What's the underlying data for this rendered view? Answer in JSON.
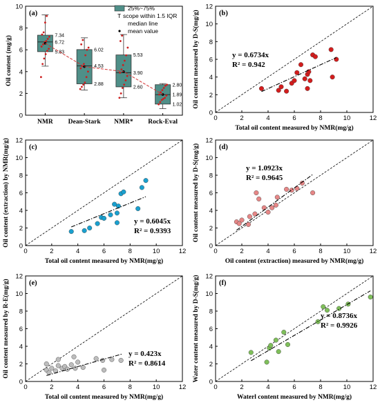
{
  "colors": {
    "box_fill": "#4f8f88",
    "box_point": "#cc1f1f",
    "mean_line": "#d33333",
    "scatter_b": "#d31d1d",
    "scatter_c": "#1aa0cf",
    "scatter_d": "#e68787",
    "scatter_e": "#bdbdbd",
    "scatter_f": "#7fbf5a"
  },
  "chart_data": [
    {
      "id": "a",
      "type": "box",
      "panel_label": "(a)",
      "ylabel": "Oil content (mg/g)",
      "ylim": [
        0,
        10
      ],
      "yticks": [
        0,
        2,
        4,
        6,
        8,
        10
      ],
      "categories": [
        "NMR",
        "Dean-Stark",
        "NMR*",
        "Rock-Eval"
      ],
      "legend": {
        "box": "25%~75%",
        "whisker": "scope within 1.5 IQR",
        "median": "median line",
        "mean": "mean value"
      },
      "boxes": [
        {
          "category": "NMR",
          "q1": 5.83,
          "median": 6.72,
          "q3": 7.34,
          "whisker_low": 4.5,
          "whisker_high": 9.2,
          "mean": 6.6,
          "labels": [
            "7.34",
            "6.72",
            "5.83"
          ],
          "points": [
            3.5,
            4.7,
            5.2,
            5.6,
            5.9,
            6.1,
            6.3,
            6.5,
            6.7,
            6.8,
            7.0,
            7.2,
            7.4,
            7.6,
            8.5,
            9.1
          ]
        },
        {
          "category": "Dean-Stark",
          "q1": 2.88,
          "median": 4.53,
          "q3": 6.02,
          "whisker_low": 2.3,
          "whisker_high": 7.1,
          "mean": 4.45,
          "labels": [
            "6.02",
            "4.53",
            "2.88"
          ],
          "points": [
            2.4,
            2.6,
            2.8,
            3.0,
            3.5,
            4.0,
            4.3,
            4.5,
            4.7,
            5.5,
            6.0,
            6.2,
            6.5,
            6.9
          ]
        },
        {
          "category": "NMR*",
          "q1": 2.6,
          "median": 3.9,
          "q3": 5.53,
          "whisker_low": 1.6,
          "whisker_high": 7.4,
          "mean": 4.0,
          "labels": [
            "5.53",
            "3.90",
            "2.60"
          ],
          "points": [
            1.6,
            2.0,
            2.5,
            2.8,
            3.2,
            3.6,
            3.9,
            4.2,
            4.6,
            5.0,
            5.5,
            6.2,
            6.8,
            7.3
          ]
        },
        {
          "category": "Rock-Eval",
          "q1": 1.02,
          "median": 1.89,
          "q3": 2.8,
          "whisker_low": 0.6,
          "whisker_high": 2.9,
          "mean": 1.9,
          "labels": [
            "2.80",
            "1.89",
            "1.02"
          ],
          "points": [
            1.0,
            1.2,
            1.4,
            1.5,
            1.6,
            1.8,
            1.9,
            2.1,
            2.3,
            2.5,
            2.7,
            2.8
          ]
        }
      ]
    },
    {
      "id": "b",
      "type": "scatter",
      "panel_label": "(b)",
      "xlabel": "Total oil content measured by NMR(mg/g)",
      "ylabel": "Oil content measured by D-S(mg/g)",
      "xlim": [
        0,
        12
      ],
      "ylim": [
        0,
        12
      ],
      "xticks": [
        0,
        2,
        4,
        6,
        8,
        10,
        12
      ],
      "yticks": [
        0,
        2,
        4,
        6,
        8,
        10,
        12
      ],
      "equation": "y = 0.6734x",
      "r2": "R² = 0.942",
      "slope": 0.6734,
      "fit_x": [
        3.5,
        9.2
      ],
      "x": [
        3.5,
        4.8,
        5.0,
        5.4,
        5.8,
        6.0,
        6.2,
        6.5,
        6.8,
        7.0,
        7.0,
        7.1,
        7.2,
        7.4,
        7.6,
        8.8,
        8.9,
        9.2
      ],
      "y": [
        2.7,
        2.5,
        2.9,
        2.4,
        3.3,
        3.6,
        4.5,
        5.4,
        3.8,
        4.3,
        2.7,
        4.6,
        3.6,
        6.5,
        6.3,
        7.1,
        4.0,
        6.0
      ]
    },
    {
      "id": "c",
      "type": "scatter",
      "panel_label": "(c)",
      "xlabel": "Total oil content measured by NMR(mg/g)",
      "ylabel": "Oil content (extraction) by NMR(mg/g)",
      "xlim": [
        0,
        12
      ],
      "ylim": [
        0,
        12
      ],
      "xticks": [
        0,
        2,
        4,
        6,
        8,
        10,
        12
      ],
      "yticks": [
        0,
        2,
        4,
        6,
        8,
        10,
        12
      ],
      "equation": "y = 0.6045x",
      "r2": "R² = 0.9393",
      "slope": 0.6045,
      "fit_x": [
        3.5,
        9.2
      ],
      "x": [
        3.5,
        4.5,
        4.9,
        5.5,
        5.8,
        6.0,
        6.5,
        6.8,
        7.0,
        7.0,
        7.1,
        7.3,
        7.5,
        8.6,
        8.9,
        9.2
      ],
      "y": [
        1.6,
        1.7,
        2.0,
        2.5,
        3.2,
        3.1,
        3.5,
        4.7,
        2.6,
        3.7,
        4.5,
        5.9,
        6.1,
        4.2,
        6.6,
        7.4
      ]
    },
    {
      "id": "d",
      "type": "scatter",
      "panel_label": "(d)",
      "xlabel": "Oil content (extraction) measured by NMR(mg/g)",
      "ylabel": "Oil content measured by D-S(mg/g)",
      "xlim": [
        0,
        12
      ],
      "ylim": [
        0,
        12
      ],
      "xticks": [
        0,
        2,
        4,
        6,
        8,
        10,
        12
      ],
      "yticks": [
        0,
        2,
        4,
        6,
        8,
        10,
        12
      ],
      "equation": "y = 1.0923x",
      "r2": "R² = 0.9645",
      "slope": 1.0923,
      "fit_x": [
        1.6,
        7.4
      ],
      "x": [
        1.6,
        1.8,
        2.0,
        2.5,
        2.6,
        3.0,
        3.1,
        3.3,
        3.7,
        4.0,
        4.3,
        4.6,
        4.7,
        5.4,
        5.8,
        6.2,
        6.6,
        7.4
      ],
      "y": [
        2.7,
        2.5,
        2.9,
        2.4,
        3.3,
        3.6,
        6.0,
        5.3,
        4.3,
        3.8,
        4.3,
        4.6,
        5.5,
        6.4,
        6.3,
        6.5,
        7.1,
        6.0
      ]
    },
    {
      "id": "e",
      "type": "scatter",
      "panel_label": "(e)",
      "xlabel": "Total oil content measured by NMR(mg/g)",
      "ylabel": "Oil content measured by R-E(mg/g)",
      "xlim": [
        0,
        12
      ],
      "ylim": [
        0,
        12
      ],
      "xticks": [
        0,
        2,
        4,
        6,
        8,
        10,
        12
      ],
      "yticks": [
        0,
        2,
        4,
        6,
        8,
        10,
        12
      ],
      "equation": "y = 0.423x",
      "r2": "R² = 0.8614",
      "slope": 0.423,
      "fit_x": [
        1.6,
        7.4
      ],
      "x": [
        1.6,
        1.6,
        1.8,
        2.0,
        2.3,
        2.5,
        2.5,
        2.8,
        3.0,
        3.2,
        3.5,
        3.7,
        3.8,
        4.0,
        4.4,
        5.4,
        5.9,
        6.0,
        6.6,
        7.3
      ],
      "y": [
        1.3,
        2.0,
        1.0,
        1.5,
        1.2,
        1.8,
        2.5,
        1.5,
        1.7,
        1.4,
        1.9,
        2.8,
        1.5,
        2.2,
        1.6,
        2.6,
        2.4,
        1.3,
        2.5,
        2.4
      ]
    },
    {
      "id": "f",
      "type": "scatter",
      "panel_label": "(f)",
      "xlabel": "Waterl content measured by NMR(mg/g)",
      "ylabel": "Water content measured by D-S(mg/g)",
      "xlim": [
        0,
        12
      ],
      "ylim": [
        0,
        12
      ],
      "xticks": [
        0,
        2,
        4,
        6,
        8,
        10,
        12
      ],
      "yticks": [
        0,
        2,
        4,
        6,
        8,
        10,
        12
      ],
      "equation": "y = 0.8736x",
      "r2": "R² = 0.9926",
      "slope": 0.8736,
      "fit_x": [
        2.7,
        11.8
      ],
      "x": [
        2.7,
        3.9,
        4.1,
        4.2,
        4.6,
        4.8,
        5.2,
        5.5,
        7.8,
        8.2,
        8.5,
        9.4,
        10.1,
        11.8
      ],
      "y": [
        3.3,
        2.2,
        3.8,
        4.1,
        4.7,
        3.4,
        5.6,
        4.2,
        6.8,
        8.5,
        8.1,
        8.3,
        8.8,
        9.6
      ]
    }
  ]
}
